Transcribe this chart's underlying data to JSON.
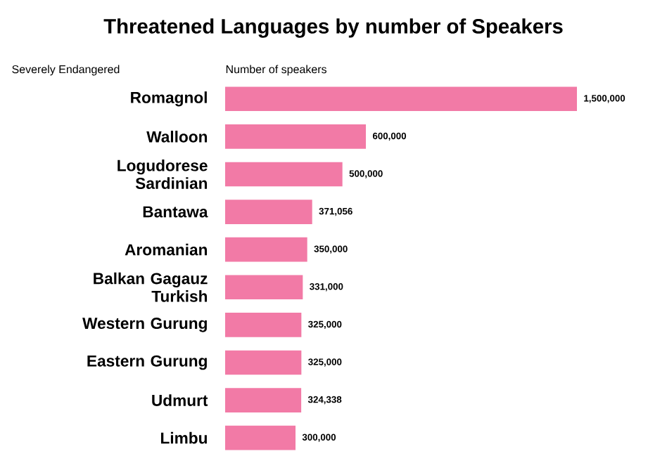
{
  "chart_data": {
    "type": "bar",
    "orientation": "horizontal",
    "title": "Threatened  Languages by number of Speakers",
    "ylabel": "Severely Endangered",
    "xlabel": "Number of speakers",
    "categories": [
      "Romagnol",
      "Walloon",
      "Logudorese Sardinian",
      "Bantawa",
      "Aromanian",
      "Balkan Gagauz Turkish",
      "Western Gurung",
      "Eastern Gurung",
      "Udmurt",
      "Limbu"
    ],
    "values": [
      1500000,
      600000,
      500000,
      371056,
      350000,
      331000,
      325000,
      325000,
      324338,
      300000
    ],
    "value_labels": [
      "1,500,000",
      "600,000",
      "500,000",
      "371,056",
      "350,000",
      "331,000",
      "325,000",
      "325,000",
      "324,338",
      "300,000"
    ],
    "color": "#f27aa6"
  }
}
